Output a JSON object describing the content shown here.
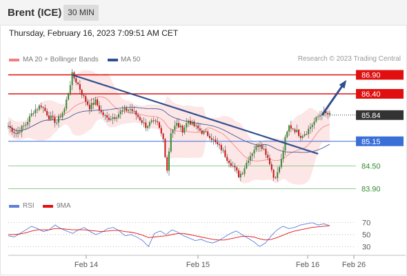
{
  "header": {
    "instrument": "Brent (ICE)",
    "timeframe": "30 MIN"
  },
  "datetime": "Thursday, February 16, 2023 7:09:51 AM CET",
  "legend": {
    "ma20_label": "MA 20 + Bollinger Bands",
    "ma50_label": "MA 50",
    "rsi_label": "RSI",
    "ma9_label": "9MA"
  },
  "copyright": "Research © 2023 Trading Central",
  "colors": {
    "ma20": "#f08080",
    "ma50": "#2f4f8f",
    "bollinger_fill": "#fde2e2",
    "resistance": "#e01010",
    "pivot": "#3a6fd8",
    "support": "#90c890",
    "support_text": "#2e8b2e",
    "last_price": "#333333",
    "up": "#2e8b2e",
    "down": "#cc1111",
    "rsi": "#5b7fd6",
    "rsi_ma": "#e01010",
    "trendline": "#2f4f8f"
  },
  "chart_data": {
    "type": "candlestick",
    "x_labels": [
      "Feb 14",
      "Feb 15",
      "Feb 16",
      "Feb 26"
    ],
    "price_range": [
      83.6,
      87.2
    ],
    "levels": [
      {
        "price": 86.9,
        "label": "86.90",
        "kind": "resistance"
      },
      {
        "price": 86.4,
        "label": "86.40",
        "kind": "resistance"
      },
      {
        "price": 85.84,
        "label": "85.84",
        "kind": "last"
      },
      {
        "price": 85.15,
        "label": "85.15",
        "kind": "pivot"
      },
      {
        "price": 84.5,
        "label": "84.50",
        "kind": "support"
      },
      {
        "price": 83.9,
        "label": "83.90",
        "kind": "support"
      }
    ],
    "price_path": [
      [
        0,
        85.55
      ],
      [
        4,
        85.35
      ],
      [
        9,
        85.6
      ],
      [
        13,
        85.95
      ],
      [
        17,
        86.1
      ],
      [
        21,
        85.8
      ],
      [
        25,
        85.65
      ],
      [
        29,
        86.0
      ],
      [
        33,
        86.9
      ],
      [
        36,
        86.65
      ],
      [
        39,
        86.3
      ],
      [
        42,
        86.05
      ],
      [
        45,
        86.2
      ],
      [
        48,
        85.9
      ],
      [
        51,
        85.75
      ],
      [
        55,
        85.8
      ],
      [
        59,
        85.95
      ],
      [
        63,
        86.0
      ],
      [
        67,
        85.8
      ],
      [
        71,
        85.55
      ],
      [
        74,
        85.65
      ],
      [
        77,
        85.6
      ],
      [
        80,
        85.2
      ],
      [
        82,
        84.4
      ],
      [
        84,
        85.4
      ],
      [
        87,
        85.6
      ],
      [
        90,
        85.45
      ],
      [
        93,
        85.7
      ],
      [
        96,
        85.55
      ],
      [
        100,
        85.4
      ],
      [
        104,
        85.3
      ],
      [
        107,
        85.1
      ],
      [
        110,
        84.95
      ],
      [
        113,
        84.7
      ],
      [
        116,
        84.5
      ],
      [
        119,
        84.25
      ],
      [
        121,
        84.35
      ],
      [
        124,
        84.7
      ],
      [
        127,
        84.95
      ],
      [
        130,
        85.1
      ],
      [
        133,
        84.85
      ],
      [
        135,
        84.6
      ],
      [
        137,
        84.2
      ],
      [
        139,
        84.3
      ],
      [
        141,
        84.65
      ],
      [
        143,
        85.2
      ],
      [
        145,
        85.55
      ],
      [
        148,
        85.45
      ],
      [
        151,
        85.3
      ],
      [
        154,
        85.4
      ],
      [
        157,
        85.6
      ],
      [
        160,
        85.8
      ],
      [
        162,
        85.9
      ],
      [
        166,
        85.84
      ]
    ],
    "trendline": {
      "from": [
        33,
        86.9
      ],
      "to": [
        160,
        84.82
      ]
    },
    "projection": {
      "from": [
        162,
        85.84
      ],
      "to": [
        174,
        86.72
      ]
    },
    "rsi": {
      "ticks": [
        70,
        50,
        30
      ],
      "range": [
        20,
        80
      ],
      "values": [
        48,
        46,
        52,
        58,
        64,
        60,
        55,
        58,
        66,
        60,
        56,
        52,
        58,
        62,
        55,
        50,
        54,
        60,
        62,
        56,
        48,
        50,
        46,
        40,
        30,
        52,
        56,
        50,
        58,
        54,
        48,
        44,
        40,
        42,
        38,
        36,
        40,
        46,
        52,
        56,
        50,
        44,
        38,
        30,
        36,
        48,
        58,
        64,
        60,
        62,
        66,
        68,
        70,
        66,
        68,
        65
      ],
      "ma_values": [
        50,
        50,
        51,
        53,
        56,
        58,
        58,
        58,
        60,
        60,
        59,
        58,
        58,
        58,
        57,
        56,
        55,
        56,
        57,
        57,
        55,
        54,
        52,
        49,
        45,
        46,
        47,
        48,
        50,
        52,
        52,
        50,
        48,
        46,
        44,
        42,
        41,
        41,
        43,
        45,
        47,
        47,
        46,
        43,
        41,
        42,
        45,
        49,
        53,
        56,
        58,
        60,
        62,
        63,
        64,
        65
      ]
    }
  }
}
